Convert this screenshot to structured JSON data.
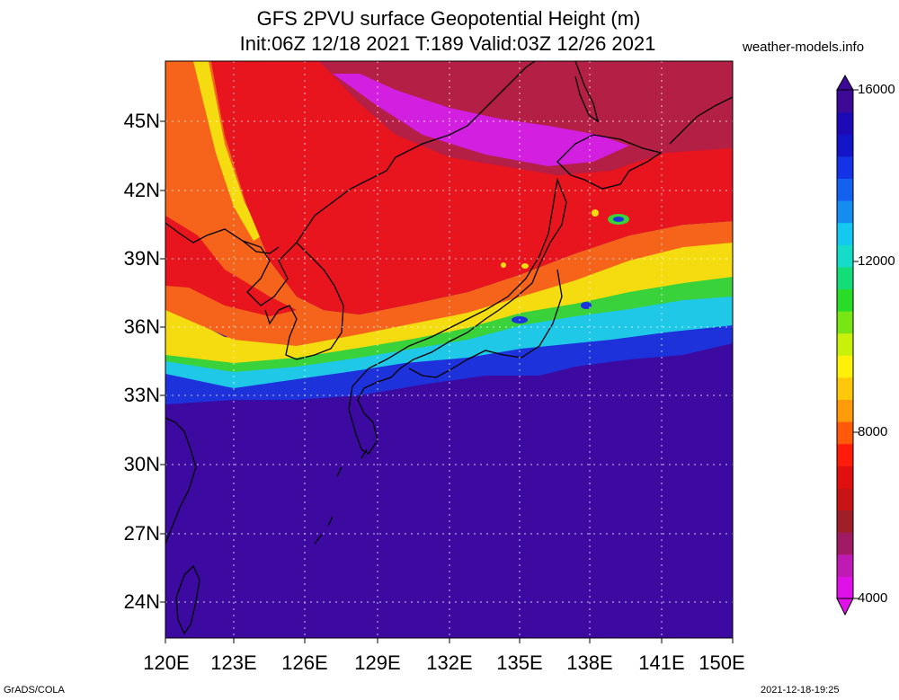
{
  "title": {
    "line1": "GFS 2PVU surface Geopotential Height (m)",
    "line2": "Init:06Z 12/18 2021 T:189 Valid:03Z 12/26 2021"
  },
  "site": "weather-models.info",
  "map": {
    "lat_labels": [
      "45N",
      "42N",
      "39N",
      "36N",
      "33N",
      "30N",
      "27N",
      "24N"
    ],
    "lon_labels": [
      "120E",
      "123E",
      "126E",
      "129E",
      "132E",
      "135E",
      "138E",
      "141E",
      "144E",
      "147E",
      "150E"
    ],
    "bands": [
      {
        "name": "magenta",
        "color": "#d21fe0"
      },
      {
        "name": "maroon",
        "color": "#b41f46"
      },
      {
        "name": "red",
        "color": "#e8141e"
      },
      {
        "name": "orange",
        "color": "#f5641a"
      },
      {
        "name": "yellow",
        "color": "#f5dc10"
      },
      {
        "name": "green",
        "color": "#3ad23a"
      },
      {
        "name": "cyan",
        "color": "#1ec8e6"
      },
      {
        "name": "blue",
        "color": "#1e32dc"
      },
      {
        "name": "indigo",
        "color": "#3c0aa0"
      }
    ]
  },
  "colorbar": {
    "labels": [
      "16000",
      "12000",
      "8000",
      "4000"
    ],
    "colors": [
      "#e010e8",
      "#c01ab4",
      "#a01a64",
      "#a01e28",
      "#c81414",
      "#e10f0f",
      "#ff1c0a",
      "#ff5a0a",
      "#ff9a0a",
      "#ffc80a",
      "#fff00a",
      "#c8f00a",
      "#78e614",
      "#28dc28",
      "#14dc78",
      "#14dcc8",
      "#14c8f0",
      "#148cf0",
      "#1460f0",
      "#1432e6",
      "#1414c8",
      "#1e0ab4",
      "#3c0a96"
    ]
  },
  "footer": {
    "left": "GrADS/COLA",
    "right": "2021-12-18-19:25"
  }
}
